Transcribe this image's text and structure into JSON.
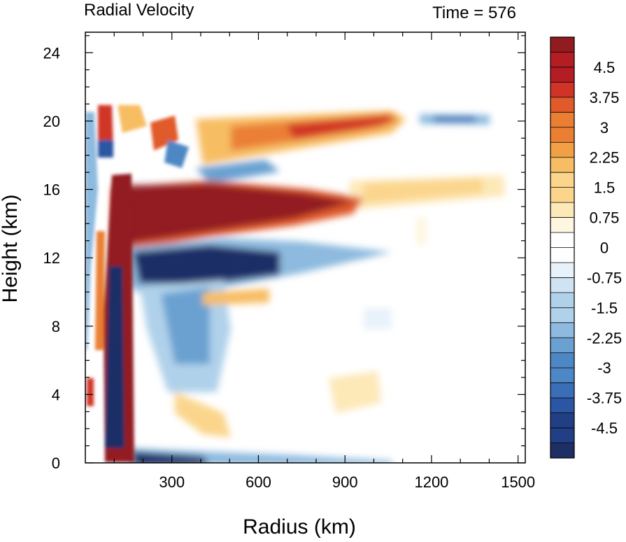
{
  "chart_data": {
    "type": "heatmap",
    "title_left": "Radial Velocity",
    "title_right": "Time = 576",
    "xlabel": "Radius (km)",
    "ylabel": "Height (km)",
    "xlim": [
      0,
      1525
    ],
    "ylim": [
      0,
      25.2
    ],
    "xticks": [
      300,
      600,
      900,
      1200,
      1500
    ],
    "xtick_labels": [
      "300",
      "600",
      "900",
      "1200",
      "1500"
    ],
    "yticks": [
      0,
      4,
      8,
      12,
      16,
      20,
      24
    ],
    "ytick_labels": [
      "0",
      "4",
      "8",
      "12",
      "16",
      "20",
      "24"
    ],
    "colorbar": {
      "min": -5.25,
      "max": 5.25,
      "interval": 0.375,
      "labels": [
        "4.5",
        "3.75",
        "3",
        "2.25",
        "1.5",
        "0.75",
        "0",
        "-0.75",
        "-1.5",
        "-2.25",
        "-3",
        "-3.75",
        "-4.5"
      ],
      "colors": [
        "#1e2f66",
        "#213f85",
        "#2a56a3",
        "#3a6fb7",
        "#4d87c5",
        "#6aa1d1",
        "#8dbade",
        "#b0d1ea",
        "#cfe3f3",
        "#e8f2fa",
        "#ffffff",
        "#fdf6e0",
        "#fde8b8",
        "#fbd58c",
        "#f7bd64",
        "#f1a045",
        "#ea7f34",
        "#e05a2a",
        "#d03426",
        "#b51d24",
        "#921b20"
      ]
    },
    "features": [
      {
        "name": "strong outflow layer",
        "sign": "positive",
        "r_range": [
          130,
          960
        ],
        "z_center": 14.8,
        "peak": 5.25
      },
      {
        "name": "upper outflow layer",
        "sign": "positive",
        "r_range": [
          420,
          1150
        ],
        "z_center": 19.6,
        "peak": 4.5
      },
      {
        "name": "weak outer outflow",
        "sign": "positive",
        "r_range": [
          950,
          1500
        ],
        "z_center": 16.0,
        "peak": 1.5
      },
      {
        "name": "inflow below outflow",
        "sign": "negative",
        "r_range": [
          150,
          620
        ],
        "z_center": 11.3,
        "peak": -5.25
      },
      {
        "name": "boundary layer inflow",
        "sign": "negative",
        "r_range": [
          150,
          560
        ],
        "z_center": 0.5,
        "peak": -5.25
      },
      {
        "name": "upper-level inflow band",
        "sign": "negative",
        "r_range": [
          1180,
          1420
        ],
        "z_center": 20.3,
        "peak": -3.0
      },
      {
        "name": "mid-level outflow patch",
        "sign": "positive",
        "r_range": [
          420,
          640
        ],
        "z_center": 9.5,
        "peak": 2.25
      },
      {
        "name": "eyewall column inflow",
        "sign": "negative",
        "r_range": [
          90,
          150
        ],
        "z_center": 7,
        "peak": -5.25
      }
    ]
  }
}
